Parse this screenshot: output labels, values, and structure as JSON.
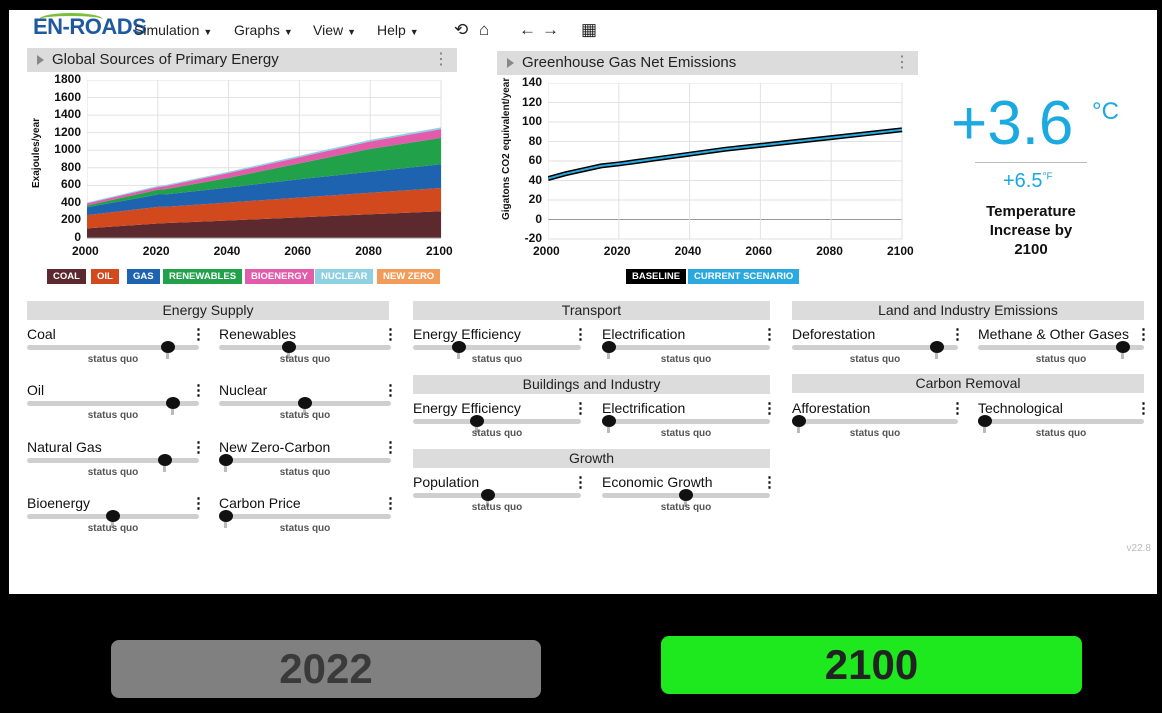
{
  "app": {
    "logo": "EN-ROADS",
    "version": "v22.8"
  },
  "menu": [
    {
      "label": "Simulation"
    },
    {
      "label": "Graphs"
    },
    {
      "label": "View"
    },
    {
      "label": "Help"
    }
  ],
  "toolbar": {
    "undo_icon": "undo-icon",
    "home_icon": "home-icon",
    "back_icon": "arrow-left-icon",
    "forward_icon": "arrow-right-icon",
    "table_icon": "table-icon"
  },
  "energy_panel": {
    "title": "Global Sources of Primary Energy",
    "ylabel": "Exajoules/year",
    "legend": [
      {
        "label": "COAL",
        "color": "#5c2a2e"
      },
      {
        "label": "OIL",
        "color": "#d2491e"
      },
      {
        "label": "GAS",
        "color": "#1d63b0"
      },
      {
        "label": "RENEWABLES",
        "color": "#21a24a"
      },
      {
        "label": "BIOENERGY",
        "color": "#e35bab"
      },
      {
        "label": "NUCLEAR",
        "color": "#8fd0e3"
      },
      {
        "label": "NEW ZERO",
        "color": "#f39c5a"
      }
    ]
  },
  "emissions_panel": {
    "title": "Greenhouse Gas Net Emissions",
    "ylabel": "Gigatons CO2 equivalent/year",
    "legend": [
      {
        "label": "BASELINE",
        "color": "#000000"
      },
      {
        "label": "CURRENT SCENARIO",
        "color": "#29a9df"
      }
    ]
  },
  "chart_data": [
    {
      "type": "area",
      "title": "Global Sources of Primary Energy",
      "ylabel": "Exajoules/year",
      "x": [
        2000,
        2020,
        2022,
        2040,
        2060,
        2080,
        2100
      ],
      "xticks": [
        2000,
        2020,
        2040,
        2060,
        2080,
        2100
      ],
      "yticks": [
        0,
        200,
        400,
        600,
        800,
        1000,
        1200,
        1400,
        1600,
        1800
      ],
      "ylim": [
        0,
        1800
      ],
      "series": [
        {
          "name": "COAL",
          "values": [
            110,
            165,
            170,
            200,
            235,
            270,
            305
          ]
        },
        {
          "name": "OIL",
          "values": [
            150,
            190,
            185,
            205,
            225,
            245,
            265
          ]
        },
        {
          "name": "GAS",
          "values": [
            90,
            140,
            140,
            170,
            210,
            240,
            270
          ]
        },
        {
          "name": "RENEWABLES",
          "values": [
            20,
            55,
            60,
            110,
            180,
            260,
            300
          ]
        },
        {
          "name": "BIOENERGY",
          "values": [
            25,
            30,
            35,
            55,
            70,
            85,
            100
          ]
        },
        {
          "name": "NUCLEAR",
          "values": [
            10,
            12,
            12,
            15,
            17,
            18,
            20
          ]
        },
        {
          "name": "NEW ZERO",
          "values": [
            0,
            0,
            0,
            0,
            0,
            0,
            0
          ]
        }
      ]
    },
    {
      "type": "line",
      "title": "Greenhouse Gas Net Emissions",
      "ylabel": "Gigatons CO2 equivalent/year",
      "x": [
        2000,
        2005,
        2010,
        2015,
        2020,
        2022,
        2030,
        2040,
        2050,
        2060,
        2070,
        2080,
        2090,
        2100
      ],
      "xticks": [
        2000,
        2020,
        2040,
        2060,
        2080,
        2100
      ],
      "yticks": [
        -20,
        0,
        20,
        40,
        60,
        80,
        100,
        120,
        140
      ],
      "ylim": [
        -20,
        140
      ],
      "series": [
        {
          "name": "BASELINE",
          "values": [
            42,
            47,
            51,
            55,
            57,
            58,
            62,
            67,
            72,
            76,
            80,
            84,
            88,
            92
          ]
        },
        {
          "name": "CURRENT SCENARIO",
          "values": [
            42,
            47,
            51,
            55,
            57,
            58,
            62,
            67,
            72,
            76,
            80,
            84,
            88,
            92
          ]
        }
      ]
    }
  ],
  "temperature": {
    "celsius": "+3.6",
    "celsius_unit": "°C",
    "fahrenheit": "+6.5",
    "fahrenheit_unit": "°F",
    "line1": "Temperature",
    "line2": "Increase by",
    "line3": "2100"
  },
  "status_quo_label": "status quo",
  "sections": {
    "energy_supply": "Energy Supply",
    "transport": "Transport",
    "buildings": "Buildings and Industry",
    "growth": "Growth",
    "land": "Land and Industry Emissions",
    "carbon_removal": "Carbon Removal"
  },
  "sliders": {
    "coal": {
      "label": "Coal",
      "value": 0.85
    },
    "renewables": {
      "label": "Renewables",
      "value": 0.4
    },
    "oil": {
      "label": "Oil",
      "value": 0.88
    },
    "nuclear": {
      "label": "Nuclear",
      "value": 0.5
    },
    "natural_gas": {
      "label": "Natural Gas",
      "value": 0.83
    },
    "new_zero_carbon": {
      "label": "New Zero-Carbon",
      "value": 0.0
    },
    "bioenergy": {
      "label": "Bioenergy",
      "value": 0.5
    },
    "carbon_price": {
      "label": "Carbon Price",
      "value": 0.0
    },
    "transport_efficiency": {
      "label": "Energy Efficiency",
      "value": 0.25
    },
    "transport_electrification": {
      "label": "Electrification",
      "value": 0.0
    },
    "buildings_efficiency": {
      "label": "Energy Efficiency",
      "value": 0.37
    },
    "buildings_electrification": {
      "label": "Electrification",
      "value": 0.0
    },
    "population": {
      "label": "Population",
      "value": 0.44
    },
    "economic_growth": {
      "label": "Economic Growth",
      "value": 0.5
    },
    "deforestation": {
      "label": "Deforestation",
      "value": 0.91
    },
    "methane": {
      "label": "Methane & Other Gases",
      "value": 0.91
    },
    "afforestation": {
      "label": "Afforestation",
      "value": 0.0
    },
    "technological": {
      "label": "Technological",
      "value": 0.0
    }
  },
  "year_buttons": {
    "start": {
      "label": "2022",
      "color": "#808080"
    },
    "end": {
      "label": "2100",
      "color": "#1ee81e"
    }
  }
}
